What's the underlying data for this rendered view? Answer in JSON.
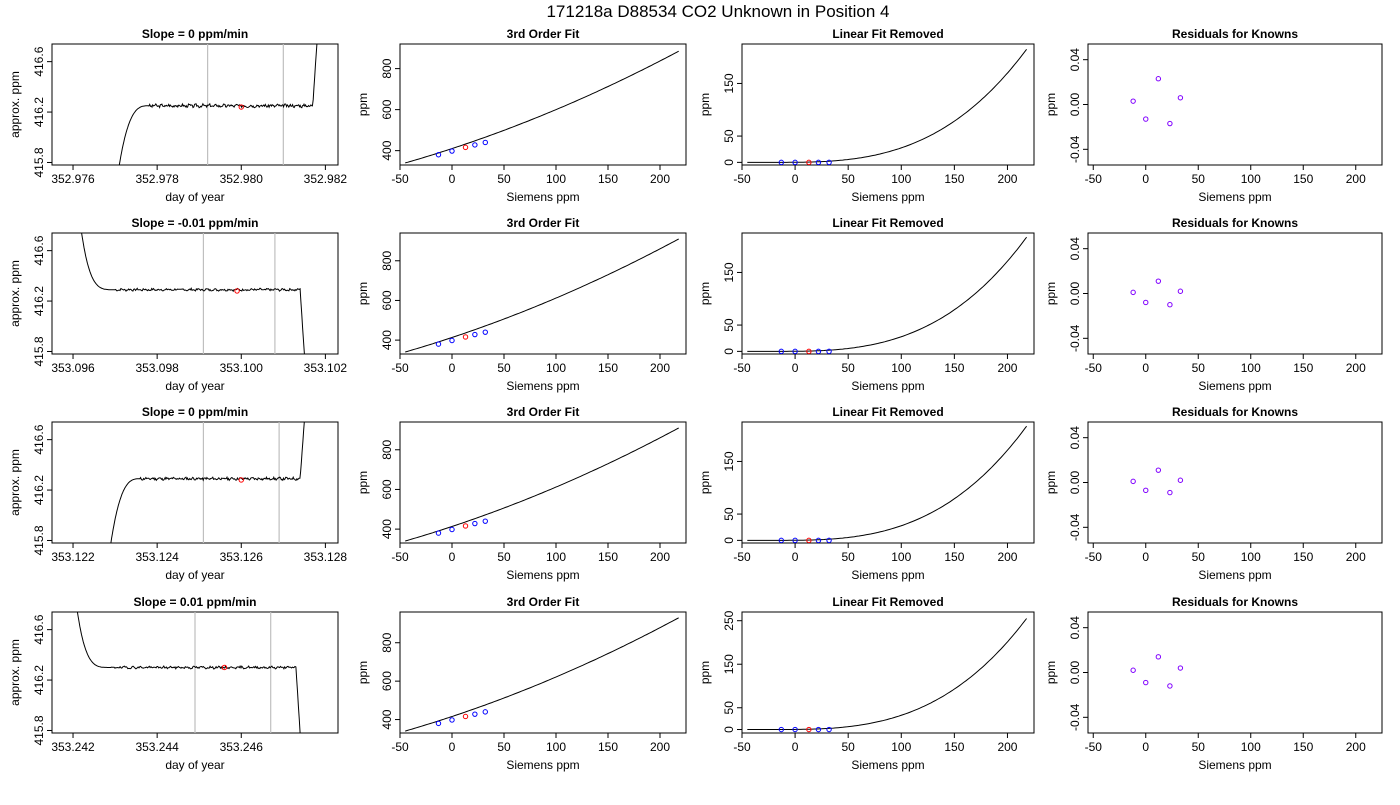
{
  "title": "171218a      D88534   CO2 Unknown in Position  4",
  "colors": {
    "curve": "#000000",
    "known_point": "#0000ff",
    "unknown_point": "#ff0000",
    "residual_point": "#8000ff",
    "marker_line": "#bfbfbf"
  },
  "chart_data": [
    {
      "type": "line",
      "title": "Slope =  0  ppm/min",
      "xlabel": "day of year",
      "ylabel": "approx. ppm",
      "xlim": [
        352.9755,
        352.9823
      ],
      "ylim": [
        415.78,
        416.74
      ],
      "xticks": [
        352.976,
        352.978,
        352.98,
        352.982
      ],
      "xtick_labels": [
        "352.976",
        "352.978",
        "352.980",
        "352.982"
      ],
      "yticks": [
        415.8,
        416.2,
        416.6
      ],
      "ytick_labels": [
        "415.8",
        "416.2",
        "416.6"
      ],
      "markers": [
        352.9792,
        352.981
      ],
      "trace": {
        "t_start": 352.9771,
        "t_rise_end": 352.9778,
        "t_plateau_end": 352.9817,
        "t_tail_end": 352.9818,
        "start": 415.78,
        "level": 416.25,
        "end": 416.75,
        "shape": "rise",
        "noise": 0.011,
        "seed": 3
      },
      "point": [
        352.98,
        416.24
      ]
    },
    {
      "type": "line",
      "title": "3rd Order Fit",
      "xlabel": "Siemens ppm",
      "ylabel": "ppm",
      "xlim": [
        -50,
        225
      ],
      "ylim": [
        330,
        920
      ],
      "xticks": [
        -50,
        0,
        50,
        100,
        150,
        200
      ],
      "xtick_labels": [
        "-50",
        "0",
        "50",
        "100",
        "150",
        "200"
      ],
      "yticks": [
        400,
        600,
        800
      ],
      "ytick_labels": [
        "400",
        "600",
        "800"
      ],
      "curve": {
        "x_start": -45,
        "x_end": 218,
        "y_start": 340,
        "y_end": 885
      },
      "knowns": [
        [
          -13,
          380
        ],
        [
          0,
          398
        ],
        [
          22,
          428
        ],
        [
          32,
          440
        ]
      ],
      "unknown": [
        [
          13,
          416
        ]
      ]
    },
    {
      "type": "line",
      "title": "Linear Fit Removed",
      "xlabel": "Siemens ppm",
      "ylabel": "ppm",
      "xlim": [
        -50,
        225
      ],
      "ylim": [
        -5,
        225
      ],
      "xticks": [
        -50,
        0,
        50,
        100,
        150,
        200
      ],
      "xtick_labels": [
        "-50",
        "0",
        "50",
        "100",
        "150",
        "200"
      ],
      "yticks": [
        0,
        50,
        150
      ],
      "ytick_labels": [
        "0",
        "50",
        "150"
      ],
      "curve": {
        "x_start": -45,
        "x_end": 218,
        "x0": -20,
        "y_end": 215
      },
      "knowns": [
        [
          -13,
          0
        ],
        [
          0,
          0
        ],
        [
          22,
          0
        ],
        [
          32,
          0
        ]
      ],
      "unknown": [
        [
          13,
          0
        ]
      ]
    },
    {
      "type": "scatter",
      "title": "Residuals for Knowns",
      "xlabel": "Siemens ppm",
      "ylabel": "ppm",
      "xlim": [
        -55,
        225
      ],
      "ylim": [
        -0.054,
        0.054
      ],
      "xticks": [
        -50,
        0,
        50,
        100,
        150,
        200
      ],
      "xtick_labels": [
        "-50",
        "0",
        "50",
        "100",
        "150",
        "200"
      ],
      "yticks": [
        -0.04,
        0.0,
        0.04
      ],
      "ytick_labels": [
        "-0.04",
        "0.00",
        "0.04"
      ],
      "points": [
        [
          -12,
          0.003
        ],
        [
          0,
          -0.013
        ],
        [
          12,
          0.023
        ],
        [
          23,
          -0.017
        ],
        [
          33,
          0.006
        ]
      ]
    },
    {
      "type": "line",
      "title": "Slope =  -0.01  ppm/min",
      "xlabel": "day of year",
      "ylabel": "approx. ppm",
      "xlim": [
        353.0955,
        353.1023
      ],
      "ylim": [
        415.78,
        416.74
      ],
      "xticks": [
        353.096,
        353.098,
        353.1,
        353.102
      ],
      "xtick_labels": [
        "353.096",
        "353.098",
        "353.100",
        "353.102"
      ],
      "yticks": [
        415.8,
        416.2,
        416.6
      ],
      "ytick_labels": [
        "415.8",
        "416.2",
        "416.6"
      ],
      "markers": [
        353.0991,
        353.1008
      ],
      "trace": {
        "t_start": 353.0962,
        "t_rise_end": 353.097,
        "t_plateau_end": 353.1014,
        "t_tail_end": 353.1015,
        "start": 416.75,
        "level": 416.29,
        "end": 415.78,
        "shape": "decay",
        "noise": 0.008,
        "seed": 7
      },
      "point": [
        353.0999,
        416.28
      ]
    },
    {
      "type": "line",
      "title": "3rd Order Fit",
      "xlabel": "Siemens ppm",
      "ylabel": "ppm",
      "xlim": [
        -50,
        225
      ],
      "ylim": [
        330,
        940
      ],
      "xticks": [
        -50,
        0,
        50,
        100,
        150,
        200
      ],
      "xtick_labels": [
        "-50",
        "0",
        "50",
        "100",
        "150",
        "200"
      ],
      "yticks": [
        400,
        600,
        800
      ],
      "ytick_labels": [
        "400",
        "600",
        "800"
      ],
      "curve": {
        "x_start": -45,
        "x_end": 218,
        "y_start": 340,
        "y_end": 910
      },
      "knowns": [
        [
          -13,
          380
        ],
        [
          0,
          398
        ],
        [
          22,
          428
        ],
        [
          32,
          440
        ]
      ],
      "unknown": [
        [
          13,
          416
        ]
      ]
    },
    {
      "type": "line",
      "title": "Linear Fit Removed",
      "xlabel": "Siemens ppm",
      "ylabel": "ppm",
      "xlim": [
        -50,
        225
      ],
      "ylim": [
        -5,
        225
      ],
      "xticks": [
        -50,
        0,
        50,
        100,
        150,
        200
      ],
      "xtick_labels": [
        "-50",
        "0",
        "50",
        "100",
        "150",
        "200"
      ],
      "yticks": [
        0,
        50,
        150
      ],
      "ytick_labels": [
        "0",
        "50",
        "150"
      ],
      "curve": {
        "x_start": -45,
        "x_end": 218,
        "x0": -20,
        "y_end": 217
      },
      "knowns": [
        [
          -13,
          0
        ],
        [
          0,
          0
        ],
        [
          22,
          0
        ],
        [
          32,
          0
        ]
      ],
      "unknown": [
        [
          13,
          0
        ]
      ]
    },
    {
      "type": "scatter",
      "title": "Residuals for Knowns",
      "xlabel": "Siemens ppm",
      "ylabel": "ppm",
      "xlim": [
        -55,
        225
      ],
      "ylim": [
        -0.054,
        0.054
      ],
      "xticks": [
        -50,
        0,
        50,
        100,
        150,
        200
      ],
      "xtick_labels": [
        "-50",
        "0",
        "50",
        "100",
        "150",
        "200"
      ],
      "yticks": [
        -0.04,
        0.0,
        0.04
      ],
      "ytick_labels": [
        "-0.04",
        "0.00",
        "0.04"
      ],
      "points": [
        [
          -12,
          0.001
        ],
        [
          0,
          -0.008
        ],
        [
          12,
          0.011
        ],
        [
          23,
          -0.01
        ],
        [
          33,
          0.002
        ]
      ]
    },
    {
      "type": "line",
      "title": "Slope =  0  ppm/min",
      "xlabel": "day of year",
      "ylabel": "approx. ppm",
      "xlim": [
        353.1215,
        353.1283
      ],
      "ylim": [
        415.78,
        416.74
      ],
      "xticks": [
        353.122,
        353.124,
        353.126,
        353.128
      ],
      "xtick_labels": [
        "353.122",
        "353.124",
        "353.126",
        "353.128"
      ],
      "yticks": [
        415.8,
        416.2,
        416.6
      ],
      "ytick_labels": [
        "415.8",
        "416.2",
        "416.6"
      ],
      "markers": [
        353.1251,
        353.1269
      ],
      "trace": {
        "t_start": 353.1229,
        "t_rise_end": 353.1236,
        "t_plateau_end": 353.1274,
        "t_tail_end": 353.1275,
        "start": 415.78,
        "level": 416.29,
        "end": 416.75,
        "shape": "rise",
        "noise": 0.009,
        "seed": 11
      },
      "point": [
        353.126,
        416.28
      ]
    },
    {
      "type": "line",
      "title": "3rd Order Fit",
      "xlabel": "Siemens ppm",
      "ylabel": "ppm",
      "xlim": [
        -50,
        225
      ],
      "ylim": [
        330,
        940
      ],
      "xticks": [
        -50,
        0,
        50,
        100,
        150,
        200
      ],
      "xtick_labels": [
        "-50",
        "0",
        "50",
        "100",
        "150",
        "200"
      ],
      "yticks": [
        400,
        600,
        800
      ],
      "ytick_labels": [
        "400",
        "600",
        "800"
      ],
      "curve": {
        "x_start": -45,
        "x_end": 218,
        "y_start": 340,
        "y_end": 910
      },
      "knowns": [
        [
          -13,
          380
        ],
        [
          0,
          398
        ],
        [
          22,
          428
        ],
        [
          32,
          440
        ]
      ],
      "unknown": [
        [
          13,
          416
        ]
      ]
    },
    {
      "type": "line",
      "title": "Linear Fit Removed",
      "xlabel": "Siemens ppm",
      "ylabel": "ppm",
      "xlim": [
        -50,
        225
      ],
      "ylim": [
        -5,
        225
      ],
      "xticks": [
        -50,
        0,
        50,
        100,
        150,
        200
      ],
      "xtick_labels": [
        "-50",
        "0",
        "50",
        "100",
        "150",
        "200"
      ],
      "yticks": [
        0,
        50,
        150
      ],
      "ytick_labels": [
        "0",
        "50",
        "150"
      ],
      "curve": {
        "x_start": -45,
        "x_end": 218,
        "x0": -20,
        "y_end": 217
      },
      "knowns": [
        [
          -13,
          0
        ],
        [
          0,
          0
        ],
        [
          22,
          0
        ],
        [
          32,
          0
        ]
      ],
      "unknown": [
        [
          13,
          0
        ]
      ]
    },
    {
      "type": "scatter",
      "title": "Residuals for Knowns",
      "xlabel": "Siemens ppm",
      "ylabel": "ppm",
      "xlim": [
        -55,
        225
      ],
      "ylim": [
        -0.054,
        0.054
      ],
      "xticks": [
        -50,
        0,
        50,
        100,
        150,
        200
      ],
      "xtick_labels": [
        "-50",
        "0",
        "50",
        "100",
        "150",
        "200"
      ],
      "yticks": [
        -0.04,
        0.0,
        0.04
      ],
      "ytick_labels": [
        "-0.04",
        "0.00",
        "0.04"
      ],
      "points": [
        [
          -12,
          0.001
        ],
        [
          0,
          -0.007
        ],
        [
          12,
          0.011
        ],
        [
          23,
          -0.009
        ],
        [
          33,
          0.002
        ]
      ]
    },
    {
      "type": "line",
      "title": "Slope =  0.01  ppm/min",
      "xlabel": "day of year",
      "ylabel": "approx. ppm",
      "xlim": [
        353.2415,
        353.2483
      ],
      "ylim": [
        415.78,
        416.74
      ],
      "xticks": [
        353.242,
        353.244,
        353.246
      ],
      "xtick_labels": [
        "353.242",
        "353.244",
        "353.246"
      ],
      "yticks": [
        415.8,
        416.2,
        416.6
      ],
      "ytick_labels": [
        "415.8",
        "416.2",
        "416.6"
      ],
      "markers": [
        353.2449,
        353.2467
      ],
      "trace": {
        "t_start": 353.2421,
        "t_rise_end": 353.2429,
        "t_plateau_end": 353.2473,
        "t_tail_end": 353.2474,
        "start": 416.75,
        "level": 416.3,
        "end": 415.78,
        "shape": "decay",
        "noise": 0.008,
        "seed": 19
      },
      "point": [
        353.2456,
        416.3
      ]
    },
    {
      "type": "line",
      "title": "3rd Order Fit",
      "xlabel": "Siemens ppm",
      "ylabel": "ppm",
      "xlim": [
        -50,
        225
      ],
      "ylim": [
        330,
        960
      ],
      "xticks": [
        -50,
        0,
        50,
        100,
        150,
        200
      ],
      "xtick_labels": [
        "-50",
        "0",
        "50",
        "100",
        "150",
        "200"
      ],
      "yticks": [
        400,
        600,
        800
      ],
      "ytick_labels": [
        "400",
        "600",
        "800"
      ],
      "curve": {
        "x_start": -45,
        "x_end": 218,
        "y_start": 340,
        "y_end": 930
      },
      "knowns": [
        [
          -13,
          380
        ],
        [
          0,
          398
        ],
        [
          22,
          428
        ],
        [
          32,
          440
        ]
      ],
      "unknown": [
        [
          13,
          416
        ]
      ]
    },
    {
      "type": "line",
      "title": "Linear Fit Removed",
      "xlabel": "Siemens ppm",
      "ylabel": "ppm",
      "xlim": [
        -50,
        225
      ],
      "ylim": [
        -8,
        270
      ],
      "xticks": [
        -50,
        0,
        50,
        100,
        150,
        200
      ],
      "xtick_labels": [
        "-50",
        "0",
        "50",
        "100",
        "150",
        "200"
      ],
      "yticks": [
        0,
        50,
        150,
        250
      ],
      "ytick_labels": [
        "0",
        "50",
        "150",
        "250"
      ],
      "curve": {
        "x_start": -45,
        "x_end": 218,
        "x0": -20,
        "y_end": 255
      },
      "knowns": [
        [
          -13,
          0
        ],
        [
          0,
          0
        ],
        [
          22,
          0
        ],
        [
          32,
          0
        ]
      ],
      "unknown": [
        [
          13,
          0
        ]
      ]
    },
    {
      "type": "scatter",
      "title": "Residuals for Knowns",
      "xlabel": "Siemens ppm",
      "ylabel": "ppm",
      "xlim": [
        -55,
        225
      ],
      "ylim": [
        -0.054,
        0.054
      ],
      "xticks": [
        -50,
        0,
        50,
        100,
        150,
        200
      ],
      "xtick_labels": [
        "-50",
        "0",
        "50",
        "100",
        "150",
        "200"
      ],
      "yticks": [
        -0.04,
        0.0,
        0.04
      ],
      "ytick_labels": [
        "-0.04",
        "0.00",
        "0.04"
      ],
      "points": [
        [
          -12,
          0.002
        ],
        [
          0,
          -0.009
        ],
        [
          12,
          0.014
        ],
        [
          23,
          -0.012
        ],
        [
          33,
          0.004
        ]
      ]
    }
  ]
}
